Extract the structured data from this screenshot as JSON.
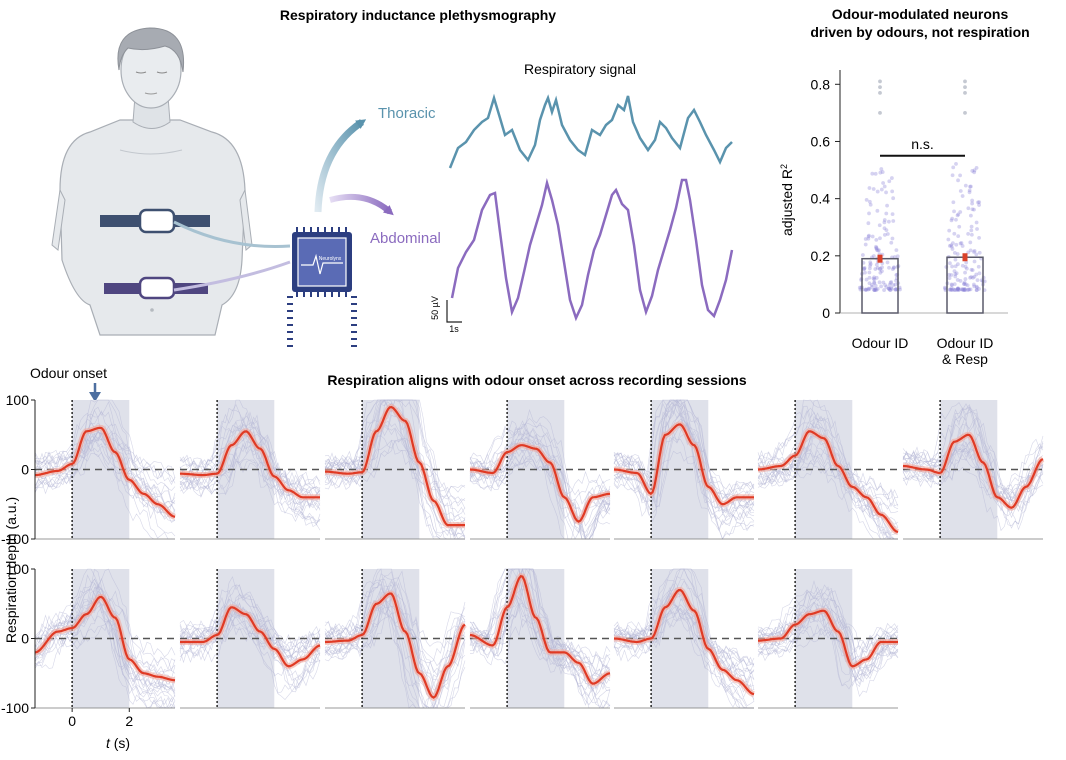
{
  "panel_a": {
    "title": "Respiratory inductance plethysmography",
    "signal_title": "Respiratory signal",
    "thoracic_label": "Thoracic",
    "abdominal_label": "Abdominal",
    "chip_label": "Neurolynx",
    "scale_y_label": "50 µV",
    "scale_x_label": "1s",
    "colors": {
      "thoracic": "#5a93ad",
      "abdominal": "#8b6bbf",
      "belt_top": "#3e5070",
      "belt_bottom": "#4f4680",
      "chip": "#2c3e80"
    }
  },
  "panel_b": {
    "title_line1": "Odour-modulated neurons",
    "title_line2": "driven by odours, not respiration",
    "ylabel": "adjusted R",
    "ylabel_sup": "2",
    "significance": "n.s.",
    "chart_data": {
      "type": "bar",
      "categories": [
        "Odour ID",
        "Odour ID & Resp"
      ],
      "category_line2": [
        "",
        "& Resp"
      ],
      "category_line1": [
        "Odour ID",
        "Odour ID"
      ],
      "values": [
        0.19,
        0.195
      ],
      "ylim": [
        0,
        0.85
      ],
      "yticks": [
        0,
        0.2,
        0.4,
        0.6,
        0.8
      ],
      "ytick_labels": [
        "0",
        "0.2",
        "0.4",
        "0.6",
        "0.8"
      ],
      "outliers": [
        0.81,
        0.79,
        0.77,
        0.7
      ],
      "point_color": "#8a82d6",
      "mean_color": "#d9412a"
    }
  },
  "panel_c": {
    "title": "Respiration aligns with odour onset across recording sessions",
    "onset_label": "Odour onset",
    "ylabel": "Respiration depth (a.u.)",
    "xlabel_italic": "t",
    "xlabel_rest": " (s)",
    "chart_data": {
      "type": "line",
      "x_range": [
        -1.3,
        3.6
      ],
      "ylim": [
        -100,
        100
      ],
      "yticks": [
        -100,
        0,
        100
      ],
      "ytick_labels": [
        "-100",
        "0",
        "100"
      ],
      "xticks": [
        0,
        2
      ],
      "xtick_labels": [
        "0",
        "2"
      ],
      "odour_window": [
        0,
        2
      ],
      "mean_color": "#e03a24",
      "trial_color": "#b4b6d6",
      "sessions": [
        {
          "x": [
            -1.3,
            -0.5,
            0,
            0.5,
            1,
            1.5,
            2,
            2.5,
            3,
            3.6
          ],
          "y": [
            -8,
            -2,
            8,
            55,
            60,
            25,
            -15,
            -35,
            -50,
            -68
          ]
        },
        {
          "x": [
            -1.3,
            -0.5,
            0,
            0.5,
            1,
            1.5,
            2,
            2.5,
            3,
            3.6
          ],
          "y": [
            -6,
            -8,
            -6,
            35,
            55,
            30,
            -10,
            -30,
            -40,
            -40
          ]
        },
        {
          "x": [
            -1.3,
            -0.5,
            0,
            0.5,
            1,
            1.5,
            2,
            2.5,
            3,
            3.6
          ],
          "y": [
            -3,
            -6,
            -4,
            55,
            90,
            70,
            10,
            -45,
            -80,
            -80
          ]
        },
        {
          "x": [
            -1.3,
            -0.5,
            0,
            0.5,
            1,
            1.5,
            2,
            2.5,
            3,
            3.6
          ],
          "y": [
            0,
            -5,
            25,
            35,
            30,
            10,
            -40,
            -75,
            -40,
            -35
          ]
        },
        {
          "x": [
            -1.3,
            -0.5,
            0,
            0.5,
            1,
            1.5,
            2,
            2.5,
            3,
            3.6
          ],
          "y": [
            0,
            -5,
            -35,
            50,
            65,
            35,
            -25,
            -50,
            -40,
            -40
          ]
        },
        {
          "x": [
            -1.3,
            -0.5,
            0,
            0.5,
            1,
            1.5,
            2,
            2.5,
            3,
            3.6
          ],
          "y": [
            0,
            5,
            20,
            55,
            45,
            5,
            -25,
            -40,
            -65,
            -90
          ]
        },
        {
          "x": [
            -1.3,
            -0.5,
            0,
            0.5,
            1,
            1.5,
            2,
            2.5,
            3,
            3.6
          ],
          "y": [
            5,
            0,
            -5,
            40,
            50,
            10,
            -40,
            -55,
            -25,
            15
          ]
        },
        {
          "x": [
            -1.3,
            -0.5,
            0,
            0.5,
            1,
            1.5,
            2,
            2.5,
            3,
            3.6
          ],
          "y": [
            -20,
            10,
            15,
            35,
            60,
            30,
            -30,
            -50,
            -55,
            -60
          ]
        },
        {
          "x": [
            -1.3,
            -0.5,
            0,
            0.5,
            1,
            1.5,
            2,
            2.5,
            3,
            3.6
          ],
          "y": [
            -5,
            -5,
            5,
            45,
            35,
            10,
            -15,
            -40,
            -30,
            -10
          ]
        },
        {
          "x": [
            -1.3,
            -0.5,
            0,
            0.5,
            1,
            1.5,
            2,
            2.5,
            3,
            3.6
          ],
          "y": [
            -5,
            -3,
            5,
            50,
            65,
            10,
            -50,
            -85,
            -40,
            20
          ]
        },
        {
          "x": [
            -1.3,
            -0.5,
            0,
            0.5,
            1,
            1.5,
            2,
            2.5,
            3,
            3.6
          ],
          "y": [
            5,
            -10,
            45,
            90,
            30,
            -20,
            -20,
            -35,
            -65,
            -50
          ]
        },
        {
          "x": [
            -1.3,
            -0.5,
            0,
            0.5,
            1,
            1.5,
            2,
            2.5,
            3,
            3.6
          ],
          "y": [
            0,
            -5,
            0,
            45,
            70,
            40,
            -15,
            -45,
            -60,
            -80
          ]
        },
        {
          "x": [
            -1.3,
            -0.5,
            0,
            0.5,
            1,
            1.5,
            2,
            2.5,
            3,
            3.6
          ],
          "y": [
            -3,
            0,
            20,
            35,
            40,
            10,
            -40,
            -30,
            -5,
            -5
          ]
        }
      ]
    }
  }
}
